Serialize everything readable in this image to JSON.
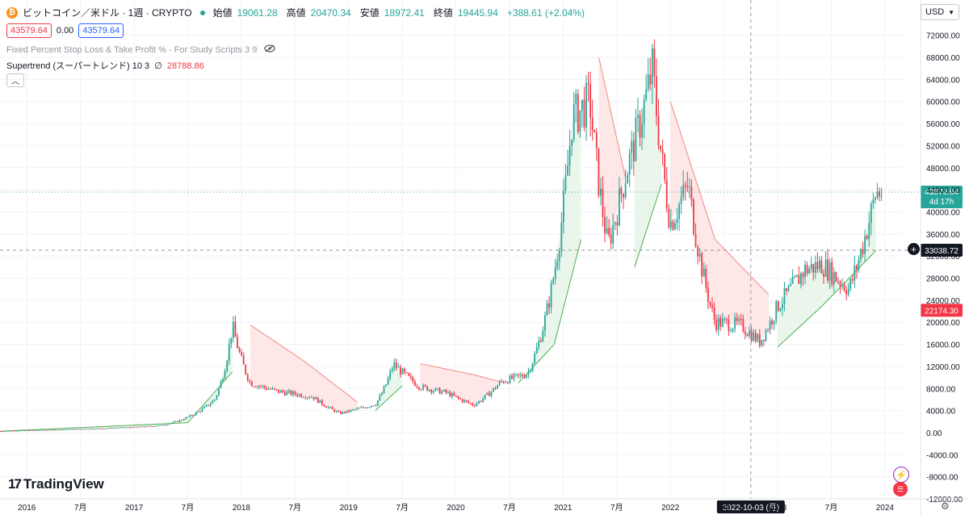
{
  "symbol": {
    "title": "ビットコイン／米ドル · 1週 · CRYPTO",
    "icon": "bitcoin-icon",
    "ohlc": [
      {
        "k": "始値",
        "v": "19061.28"
      },
      {
        "k": "高値",
        "v": "20470.34"
      },
      {
        "k": "安値",
        "v": "18972.41"
      },
      {
        "k": "終値",
        "v": "19445.94"
      }
    ],
    "change": "+388.61 (+2.04%)"
  },
  "order": {
    "sell": "43579.64",
    "spread": "0.00",
    "buy": "43579.64"
  },
  "indicators": [
    "Fixed Percent Stop Loss & Take Profit % - For Study Scripts 3 9",
    "Supertrend (スーパートレンド) 10 3"
  ],
  "supertrend_value": "28788.86",
  "currency": "USD",
  "brand": "TradingView",
  "colors": {
    "up": "#26a69a",
    "down": "#f23645",
    "st_up": "#4caf50",
    "st_down": "#f28b82",
    "fill_up": "#e8f5e9",
    "fill_down": "#fde4e4"
  },
  "price_axis": [
    "72000.00",
    "68000.00",
    "64000.00",
    "60000.00",
    "56000.00",
    "52000.00",
    "48000.00",
    "44000.00",
    "40000.00",
    "36000.00",
    "32000.00",
    "28000.00",
    "24000.00",
    "20000.00",
    "16000.00",
    "12000.00",
    "8000.00",
    "4000.00",
    "0.00",
    "-4000.00",
    "-8000.00",
    "-12000.00"
  ],
  "time_axis": [
    "2016",
    "7月",
    "2017",
    "7月",
    "2018",
    "7月",
    "2019",
    "7月",
    "2020",
    "7月",
    "2021",
    "7月",
    "2022",
    "7月",
    "2023",
    "7月",
    "2024"
  ],
  "labels": {
    "last_price": "43579.64",
    "countdown": "4d 17h",
    "crosshair_price": "33038.72",
    "supertrend_label": "22174.30",
    "crosshair_date": "2022-10-03 (月)"
  },
  "chart_data": {
    "type": "candlestick",
    "y_range": [
      -12000,
      74000
    ],
    "x_range": [
      "2015-10",
      "2024-03"
    ],
    "price_series": [
      {
        "date": "2015-10",
        "close": 300
      },
      {
        "date": "2016-01",
        "close": 430
      },
      {
        "date": "2016-07",
        "close": 650
      },
      {
        "date": "2017-01",
        "close": 1000
      },
      {
        "date": "2017-04",
        "close": 1300
      },
      {
        "date": "2017-07",
        "close": 2800
      },
      {
        "date": "2017-10",
        "close": 6000
      },
      {
        "date": "2017-12",
        "close": 19500
      },
      {
        "date": "2018-02",
        "close": 9000
      },
      {
        "date": "2018-05",
        "close": 7500
      },
      {
        "date": "2018-09",
        "close": 6500
      },
      {
        "date": "2018-12",
        "close": 3500
      },
      {
        "date": "2019-04",
        "close": 5200
      },
      {
        "date": "2019-06",
        "close": 12500
      },
      {
        "date": "2019-09",
        "close": 8300
      },
      {
        "date": "2019-12",
        "close": 7200
      },
      {
        "date": "2020-03",
        "close": 5000
      },
      {
        "date": "2020-06",
        "close": 9200
      },
      {
        "date": "2020-09",
        "close": 10700
      },
      {
        "date": "2020-12",
        "close": 29000
      },
      {
        "date": "2021-02",
        "close": 57000
      },
      {
        "date": "2021-04",
        "close": 60000
      },
      {
        "date": "2021-06",
        "close": 34000
      },
      {
        "date": "2021-08",
        "close": 47000
      },
      {
        "date": "2021-11",
        "close": 66000
      },
      {
        "date": "2022-01",
        "close": 38000
      },
      {
        "date": "2022-03",
        "close": 45000
      },
      {
        "date": "2022-06",
        "close": 20000
      },
      {
        "date": "2022-09",
        "close": 19400
      },
      {
        "date": "2022-11",
        "close": 16500
      },
      {
        "date": "2023-01",
        "close": 23000
      },
      {
        "date": "2023-04",
        "close": 29500
      },
      {
        "date": "2023-06",
        "close": 30500
      },
      {
        "date": "2023-09",
        "close": 26000
      },
      {
        "date": "2023-11",
        "close": 37000
      },
      {
        "date": "2023-12",
        "close": 43580
      }
    ],
    "supertrend": [
      {
        "date": "2015-10",
        "value": 250,
        "trend": "up"
      },
      {
        "date": "2017-07",
        "value": 1800,
        "trend": "up"
      },
      {
        "date": "2017-12",
        "value": 11000,
        "trend": "up"
      },
      {
        "date": "2018-02",
        "value": 19500,
        "trend": "down"
      },
      {
        "date": "2018-08",
        "value": 13000,
        "trend": "down"
      },
      {
        "date": "2019-02",
        "value": 5500,
        "trend": "down"
      },
      {
        "date": "2019-04",
        "value": 4000,
        "trend": "up"
      },
      {
        "date": "2019-07",
        "value": 8500,
        "trend": "up"
      },
      {
        "date": "2019-09",
        "value": 12500,
        "trend": "down"
      },
      {
        "date": "2020-03",
        "value": 10500,
        "trend": "down"
      },
      {
        "date": "2020-06",
        "value": 9200,
        "trend": "down"
      },
      {
        "date": "2020-08",
        "value": 9000,
        "trend": "up"
      },
      {
        "date": "2020-12",
        "value": 16000,
        "trend": "up"
      },
      {
        "date": "2021-03",
        "value": 35000,
        "trend": "up"
      },
      {
        "date": "2021-05",
        "value": 68000,
        "trend": "down"
      },
      {
        "date": "2021-08",
        "value": 46000,
        "trend": "down"
      },
      {
        "date": "2021-09",
        "value": 30000,
        "trend": "up"
      },
      {
        "date": "2021-12",
        "value": 45000,
        "trend": "up"
      },
      {
        "date": "2022-01",
        "value": 60000,
        "trend": "down"
      },
      {
        "date": "2022-06",
        "value": 35000,
        "trend": "down"
      },
      {
        "date": "2022-12",
        "value": 25000,
        "trend": "down"
      },
      {
        "date": "2023-01",
        "value": 15500,
        "trend": "up"
      },
      {
        "date": "2023-06",
        "value": 23000,
        "trend": "up"
      },
      {
        "date": "2023-12",
        "value": 33000,
        "trend": "up"
      }
    ],
    "crosshair": {
      "date": "2022-10-03",
      "price": 33038.72
    },
    "last_price": 43579.64,
    "grid": true,
    "price_scale": "right"
  }
}
